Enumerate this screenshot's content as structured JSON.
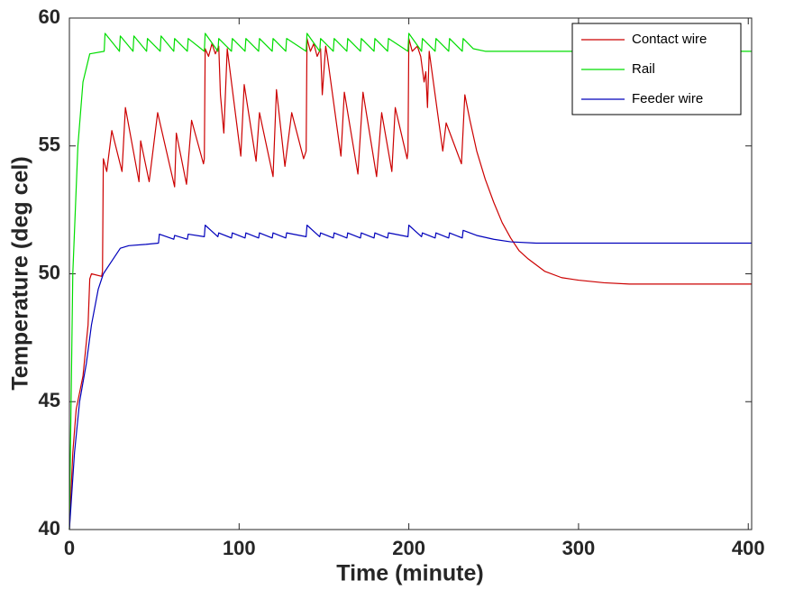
{
  "chart_data": {
    "type": "line",
    "xlabel": "Time (minute)",
    "ylabel": "Temperature (deg cel)",
    "xlim": [
      0,
      402
    ],
    "ylim": [
      40,
      60
    ],
    "xticks": [
      0,
      100,
      200,
      300,
      400
    ],
    "yticks": [
      40,
      45,
      50,
      55,
      60
    ],
    "grid": false,
    "legend": "upper right",
    "series": [
      {
        "name": "Contact wire",
        "color": "#cc0000",
        "x": [
          0,
          2,
          4,
          8,
          11,
          12,
          13,
          19,
          19.5,
          20,
          22,
          25,
          31,
          33,
          41,
          42,
          47,
          52,
          62,
          63,
          69,
          72,
          79,
          79.5,
          80,
          82,
          84,
          86,
          88,
          89,
          91,
          93,
          101,
          103,
          110,
          112,
          120,
          122,
          127,
          131,
          138,
          139.5,
          140,
          142,
          144,
          146,
          148,
          149,
          151,
          152,
          160,
          162,
          170,
          173,
          181,
          184,
          190,
          192,
          199,
          199.5,
          200,
          202,
          205,
          207,
          209,
          210,
          211,
          212,
          220,
          222,
          231,
          233,
          236,
          240,
          245,
          250,
          255,
          260,
          265,
          270,
          280,
          290,
          300,
          315,
          330,
          360,
          402
        ],
        "values": [
          40,
          43,
          44.7,
          46,
          48,
          49.8,
          50,
          49.9,
          50.1,
          54.5,
          54,
          55.6,
          54,
          56.5,
          53.6,
          55.2,
          53.6,
          56.3,
          53.4,
          55.5,
          53.5,
          56,
          54.3,
          54.5,
          58.8,
          58.5,
          59,
          58.6,
          58.9,
          57,
          55.5,
          58.8,
          54.6,
          57.4,
          54.4,
          56.3,
          53.8,
          57.2,
          54.2,
          56.3,
          54.5,
          54.8,
          59.2,
          58.7,
          59,
          58.5,
          58.8,
          57,
          58.9,
          58.5,
          54.6,
          57.1,
          53.9,
          57.1,
          53.8,
          56.3,
          54,
          56.5,
          54.5,
          54.8,
          59.2,
          58.7,
          58.9,
          58.5,
          57.5,
          57.9,
          56.5,
          58.7,
          54.8,
          55.9,
          54.3,
          57,
          56,
          54.8,
          53.7,
          52.8,
          52,
          51.4,
          50.9,
          50.6,
          50.1,
          49.85,
          49.75,
          49.65,
          49.6,
          49.6,
          49.6
        ]
      },
      {
        "name": "Rail",
        "color": "#00dd00",
        "x": [
          0,
          2,
          5,
          8,
          12,
          20.5,
          21,
          29.5,
          30,
          37.5,
          38,
          45.5,
          46,
          53.5,
          54,
          61.5,
          62,
          69.5,
          70,
          79.5,
          80,
          87.5,
          88,
          95.5,
          96,
          103.5,
          104,
          111.5,
          112,
          119.5,
          120,
          127.5,
          128,
          139.5,
          140,
          147.5,
          148,
          155.5,
          156,
          163.5,
          164,
          171.5,
          172,
          179.5,
          180,
          187.5,
          188,
          199.5,
          200,
          207.5,
          208,
          215.5,
          216,
          223.5,
          224,
          231.5,
          232,
          238,
          245,
          402
        ],
        "values": [
          40,
          50,
          55,
          57.5,
          58.6,
          58.7,
          59.4,
          58.7,
          59.3,
          58.7,
          59.3,
          58.7,
          59.2,
          58.7,
          59.3,
          58.7,
          59.2,
          58.7,
          59.2,
          58.7,
          59.4,
          58.7,
          59.2,
          58.7,
          59.2,
          58.7,
          59.2,
          58.7,
          59.2,
          58.7,
          59.2,
          58.7,
          59.2,
          58.7,
          59.4,
          58.7,
          59.2,
          58.7,
          59.2,
          58.7,
          59.2,
          58.7,
          59.2,
          58.7,
          59.2,
          58.7,
          59.2,
          58.7,
          59.4,
          58.7,
          59.2,
          58.7,
          59.2,
          58.7,
          59.2,
          58.7,
          59.2,
          58.8,
          58.7,
          58.7
        ]
      },
      {
        "name": "Feeder wire",
        "color": "#0000bb",
        "x": [
          0,
          3,
          6,
          10,
          13,
          17,
          20,
          25,
          30,
          35,
          45,
          52.5,
          53,
          61.5,
          62,
          69.5,
          70,
          79.5,
          80,
          87.5,
          88,
          95.5,
          96,
          103.5,
          104,
          111.5,
          112,
          119.5,
          120,
          127.5,
          128,
          139.5,
          140,
          147.5,
          148,
          155.5,
          156,
          163.5,
          164,
          171.5,
          172,
          179.5,
          180,
          187.5,
          188,
          199.5,
          200,
          207.5,
          208,
          215.5,
          216,
          223.5,
          224,
          231.5,
          232,
          240,
          250,
          260,
          275,
          402
        ],
        "values": [
          40,
          43,
          45,
          46.5,
          48,
          49.4,
          50,
          50.5,
          51,
          51.1,
          51.15,
          51.2,
          51.55,
          51.35,
          51.5,
          51.35,
          51.55,
          51.45,
          51.9,
          51.45,
          51.6,
          51.4,
          51.6,
          51.4,
          51.6,
          51.4,
          51.6,
          51.4,
          51.6,
          51.4,
          51.6,
          51.45,
          51.9,
          51.45,
          51.6,
          51.4,
          51.6,
          51.4,
          51.6,
          51.4,
          51.6,
          51.4,
          51.6,
          51.4,
          51.6,
          51.45,
          51.9,
          51.45,
          51.6,
          51.4,
          51.6,
          51.4,
          51.6,
          51.4,
          51.7,
          51.5,
          51.35,
          51.25,
          51.2,
          51.2
        ]
      }
    ]
  }
}
